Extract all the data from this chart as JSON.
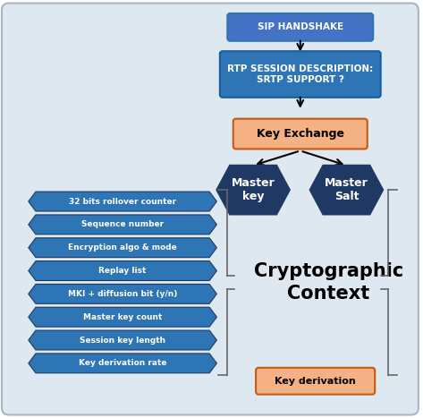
{
  "bg_color": "#dde8f0",
  "box_blue_dark": "#1f3864",
  "box_blue_mid": "#2e75b6",
  "box_blue_light": "#4472c4",
  "box_blue_rtp": "#2e75b6",
  "box_orange": "#f4b183",
  "box_orange_border": "#c55a11",
  "text_white": "#ffffff",
  "text_dark": "#000000",
  "sip_label": "SIP HANDSHAKE",
  "rtp_label": "RTP SESSION DESCRIPTION:\nSRTP SUPPORT ?",
  "key_exchange_label": "Key Exchange",
  "master_key_label": "Master\nkey",
  "master_salt_label": "Master\nSalt",
  "key_deriv_label": "Key derivation",
  "crypto_label": "Cryptographic\nContext",
  "items": [
    "32 bits rollover counter",
    "Sequence number",
    "Encryption algo & mode",
    "Replay list",
    "MKI + diffusion bit (y/n)",
    "Master key count",
    "Session key length",
    "Key derivation rate"
  ]
}
